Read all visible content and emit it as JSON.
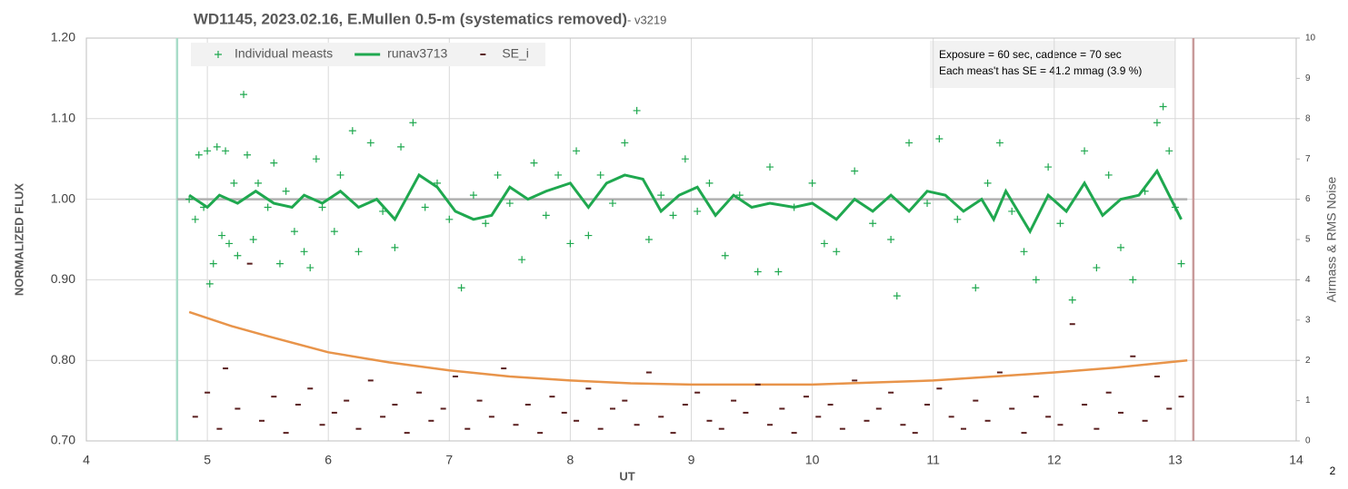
{
  "chart_data": {
    "type": "scatter",
    "title": "WD1145, 2023.02.16, E.Mullen 0.5-m (systematics removed)",
    "subtitle": " - v3219",
    "x_label": "UT",
    "y_label": "NORMALIZED FLUX",
    "y2_label": "Airmass & RMS Noise",
    "annotations": [
      "Exposure = 60 sec, cadence = 70 sec",
      "Each  meas't has SE = 41.2 mmag (3.9 %)"
    ],
    "corner_label": "2",
    "xlim": [
      4,
      14
    ],
    "xticks": [
      4,
      5,
      6,
      7,
      8,
      9,
      10,
      11,
      12,
      13,
      14
    ],
    "ylim": [
      0.7,
      1.2
    ],
    "yticks": [
      {
        "value": 0.7,
        "label": "0.70"
      },
      {
        "value": 0.8,
        "label": "0.80"
      },
      {
        "value": 0.9,
        "label": "0.90"
      },
      {
        "value": 1.0,
        "label": "1.00"
      },
      {
        "value": 1.1,
        "label": "1.10"
      },
      {
        "value": 1.2,
        "label": "1.20"
      }
    ],
    "y2lim": [
      0,
      10
    ],
    "y2ticks": [
      0,
      1,
      2,
      3,
      4,
      5,
      6,
      7,
      8,
      9,
      10
    ],
    "grid": true,
    "legend": "top-left",
    "vlines": [
      {
        "x": 4.75,
        "color": "#a8dcc8"
      },
      {
        "x": 13.15,
        "color": "#c89a9a"
      }
    ],
    "series": [
      {
        "name": "Individual measts",
        "color": "#1fa84f",
        "marker": "plus",
        "axis": "y",
        "x": [
          4.85,
          4.9,
          4.93,
          4.97,
          5.0,
          5.02,
          5.05,
          5.08,
          5.12,
          5.15,
          5.18,
          5.22,
          5.25,
          5.3,
          5.33,
          5.38,
          5.42,
          5.5,
          5.55,
          5.6,
          5.65,
          5.72,
          5.8,
          5.85,
          5.9,
          5.95,
          6.05,
          6.1,
          6.2,
          6.25,
          6.35,
          6.45,
          6.55,
          6.6,
          6.7,
          6.8,
          6.9,
          7.0,
          7.1,
          7.2,
          7.3,
          7.4,
          7.5,
          7.6,
          7.7,
          7.8,
          7.9,
          8.0,
          8.05,
          8.15,
          8.25,
          8.35,
          8.45,
          8.55,
          8.65,
          8.75,
          8.85,
          8.95,
          9.05,
          9.15,
          9.28,
          9.4,
          9.55,
          9.65,
          9.72,
          9.85,
          10.0,
          10.1,
          10.2,
          10.35,
          10.5,
          10.65,
          10.7,
          10.8,
          10.95,
          11.05,
          11.2,
          11.35,
          11.45,
          11.55,
          11.65,
          11.75,
          11.85,
          11.95,
          12.05,
          12.15,
          12.25,
          12.35,
          12.45,
          12.55,
          12.65,
          12.75,
          12.85,
          12.9,
          12.95,
          13.0,
          13.05
        ],
        "values": [
          1.0,
          0.975,
          1.055,
          0.99,
          1.06,
          0.895,
          0.92,
          1.065,
          0.955,
          1.06,
          0.945,
          1.02,
          0.93,
          1.13,
          1.055,
          0.95,
          1.02,
          0.99,
          1.045,
          0.92,
          1.01,
          0.96,
          0.935,
          0.915,
          1.05,
          0.99,
          0.96,
          1.03,
          1.085,
          0.935,
          1.07,
          0.985,
          0.94,
          1.065,
          1.095,
          0.99,
          1.02,
          0.975,
          0.89,
          1.005,
          0.97,
          1.03,
          0.995,
          0.925,
          1.045,
          0.98,
          1.03,
          0.945,
          1.06,
          0.955,
          1.03,
          0.995,
          1.07,
          1.11,
          0.95,
          1.005,
          0.98,
          1.05,
          0.985,
          1.02,
          0.93,
          1.005,
          0.91,
          1.04,
          0.91,
          0.99,
          1.02,
          0.945,
          0.935,
          1.035,
          0.97,
          0.95,
          0.88,
          1.07,
          0.995,
          1.075,
          0.975,
          0.89,
          1.02,
          1.07,
          0.985,
          0.935,
          0.9,
          1.04,
          0.97,
          0.875,
          1.06,
          0.915,
          1.03,
          0.94,
          0.9,
          1.01,
          1.095,
          1.115,
          1.06,
          0.99,
          0.92
        ]
      },
      {
        "name": "runav3713",
        "color": "#1fa84f",
        "marker": "line",
        "axis": "y",
        "x": [
          4.85,
          5.0,
          5.1,
          5.25,
          5.4,
          5.55,
          5.7,
          5.8,
          5.95,
          6.1,
          6.25,
          6.4,
          6.55,
          6.75,
          6.9,
          7.05,
          7.2,
          7.35,
          7.5,
          7.65,
          7.8,
          8.0,
          8.15,
          8.3,
          8.45,
          8.6,
          8.75,
          8.9,
          9.05,
          9.2,
          9.35,
          9.5,
          9.65,
          9.85,
          10.0,
          10.2,
          10.35,
          10.5,
          10.65,
          10.8,
          10.95,
          11.1,
          11.25,
          11.4,
          11.5,
          11.6,
          11.8,
          11.95,
          12.1,
          12.25,
          12.4,
          12.55,
          12.7,
          12.85,
          13.0,
          13.05
        ],
        "values": [
          1.005,
          0.99,
          1.005,
          0.995,
          1.01,
          0.995,
          0.99,
          1.005,
          0.995,
          1.01,
          0.99,
          1.0,
          0.975,
          1.03,
          1.015,
          0.985,
          0.975,
          0.98,
          1.015,
          1.0,
          1.01,
          1.02,
          0.99,
          1.02,
          1.03,
          1.025,
          0.985,
          1.005,
          1.015,
          0.98,
          1.005,
          0.99,
          0.995,
          0.99,
          0.995,
          0.975,
          1.0,
          0.985,
          1.005,
          0.985,
          1.01,
          1.005,
          0.985,
          1.0,
          0.975,
          1.01,
          0.96,
          1.005,
          0.985,
          1.02,
          0.98,
          1.0,
          1.005,
          1.035,
          0.99,
          0.975
        ]
      },
      {
        "name": "SE_i",
        "color": "#5a1f1f",
        "marker": "dash",
        "axis": "y2",
        "x": [
          4.9,
          5.0,
          5.1,
          5.15,
          5.25,
          5.35,
          5.45,
          5.55,
          5.65,
          5.75,
          5.85,
          5.95,
          6.05,
          6.15,
          6.25,
          6.35,
          6.45,
          6.55,
          6.65,
          6.75,
          6.85,
          6.95,
          7.05,
          7.15,
          7.25,
          7.35,
          7.45,
          7.55,
          7.65,
          7.75,
          7.85,
          7.95,
          8.05,
          8.15,
          8.25,
          8.35,
          8.45,
          8.55,
          8.65,
          8.75,
          8.85,
          8.95,
          9.05,
          9.15,
          9.25,
          9.35,
          9.45,
          9.55,
          9.65,
          9.75,
          9.85,
          9.95,
          10.05,
          10.15,
          10.25,
          10.35,
          10.45,
          10.55,
          10.65,
          10.75,
          10.85,
          10.95,
          11.05,
          11.15,
          11.25,
          11.35,
          11.45,
          11.55,
          11.65,
          11.75,
          11.85,
          11.95,
          12.05,
          12.15,
          12.25,
          12.35,
          12.45,
          12.55,
          12.65,
          12.75,
          12.85,
          12.95,
          13.05
        ],
        "values": [
          0.6,
          1.2,
          0.3,
          1.8,
          0.8,
          4.4,
          0.5,
          1.1,
          0.2,
          0.9,
          1.3,
          0.4,
          0.7,
          1.0,
          0.3,
          1.5,
          0.6,
          0.9,
          0.2,
          1.2,
          0.5,
          0.8,
          1.6,
          0.3,
          1.0,
          0.6,
          1.8,
          0.4,
          0.9,
          0.2,
          1.1,
          0.7,
          0.5,
          1.3,
          0.3,
          0.8,
          1.0,
          0.4,
          1.7,
          0.6,
          0.2,
          0.9,
          1.2,
          0.5,
          0.3,
          1.0,
          0.7,
          1.4,
          0.4,
          0.8,
          0.2,
          1.1,
          0.6,
          0.9,
          0.3,
          1.5,
          0.5,
          0.8,
          1.2,
          0.4,
          0.2,
          0.9,
          1.3,
          0.6,
          0.3,
          1.0,
          0.5,
          1.7,
          0.8,
          0.2,
          1.1,
          0.6,
          0.4,
          2.9,
          0.9,
          0.3,
          1.2,
          0.7,
          2.1,
          0.5,
          1.6,
          0.8,
          1.1
        ]
      },
      {
        "color": "#e8944a",
        "marker": "line",
        "axis": "y2",
        "x": [
          4.85,
          5.2,
          5.5,
          6.0,
          6.5,
          7.0,
          7.5,
          8.0,
          8.5,
          9.0,
          9.5,
          10.0,
          10.5,
          11.0,
          11.5,
          12.0,
          12.5,
          13.1
        ],
        "values": [
          3.2,
          2.85,
          2.6,
          2.2,
          1.95,
          1.75,
          1.6,
          1.5,
          1.43,
          1.4,
          1.4,
          1.4,
          1.45,
          1.5,
          1.6,
          1.7,
          1.82,
          2.0
        ]
      },
      {
        "color": "#b0b0b0",
        "marker": "line",
        "axis": "y",
        "x": [
          4.75,
          13.1
        ],
        "values": [
          1.0,
          1.0
        ]
      }
    ]
  }
}
